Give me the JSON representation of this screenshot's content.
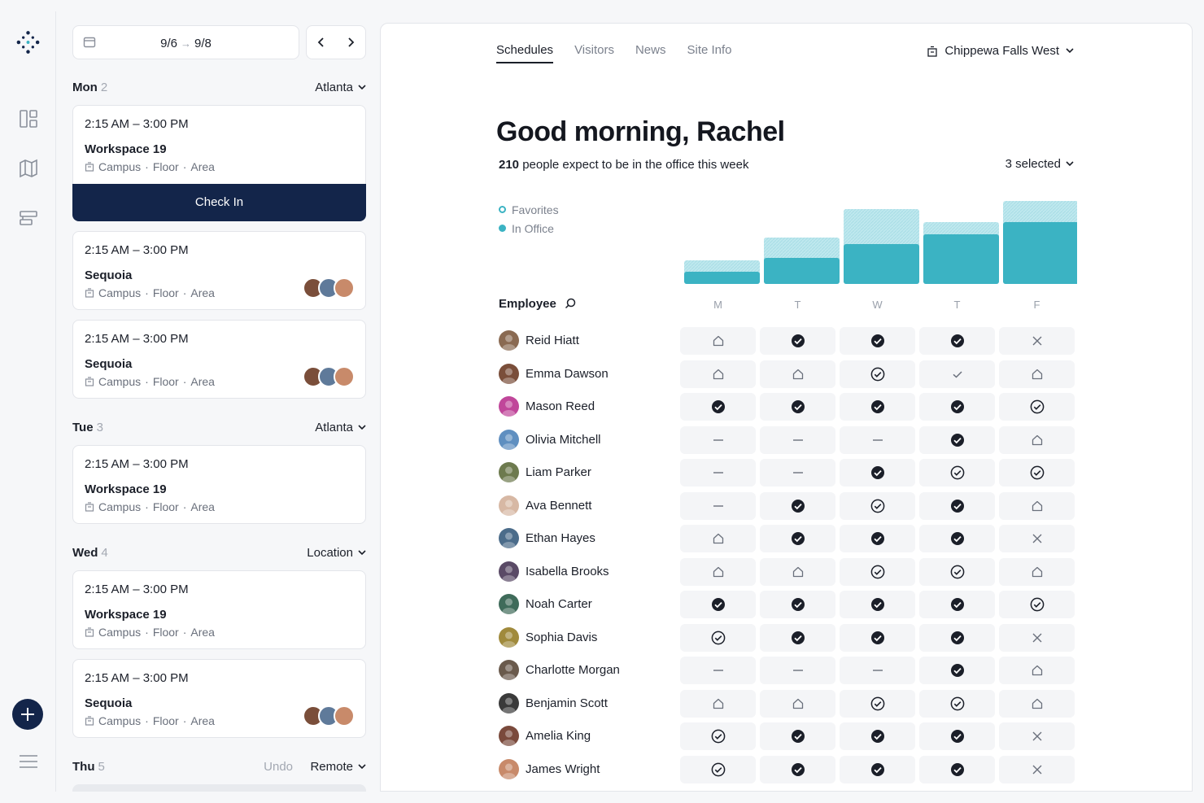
{
  "app": {
    "accent": "#3bb3c3",
    "navy": "#13254a"
  },
  "rail": {
    "icons": [
      "logo-icon",
      "dashboard-icon",
      "map-icon",
      "schedule-icon",
      "add-icon",
      "menu-icon"
    ]
  },
  "schedule": {
    "date_start": "9/6",
    "date_end": "9/8",
    "days": [
      {
        "name": "Mon",
        "count": "2",
        "location": "Atlanta"
      },
      {
        "name": "Tue",
        "count": "3",
        "location": "Atlanta"
      },
      {
        "name": "Wed",
        "count": "4",
        "location": "Location"
      },
      {
        "name": "Thu",
        "count": "5",
        "location": "Remote",
        "undo": "Undo"
      }
    ],
    "meta_campus": "Campus",
    "meta_floor": "Floor",
    "meta_area": "Area",
    "sep": "·",
    "checkin_label": "Check In",
    "cards": [
      {
        "time": "2:15 AM – 3:00 PM",
        "workspace": "Workspace 19"
      },
      {
        "time": "2:15 AM – 3:00 PM",
        "workspace": "Sequoia"
      },
      {
        "time": "2:15 AM – 3:00 PM",
        "workspace": "Sequoia"
      },
      {
        "time": "2:15 AM – 3:00 PM",
        "workspace": "Workspace 19"
      },
      {
        "time": "2:15 AM – 3:00 PM",
        "workspace": "Workspace 19"
      },
      {
        "time": "2:15 AM – 3:00 PM",
        "workspace": "Sequoia"
      }
    ]
  },
  "main": {
    "tabs": [
      {
        "label": "Schedules",
        "active": true
      },
      {
        "label": "Visitors",
        "active": false
      },
      {
        "label": "News",
        "active": false
      },
      {
        "label": "Site Info",
        "active": false
      }
    ],
    "site": "Chippewa Falls West",
    "greeting": "Good morning, Rachel",
    "people_count": "210",
    "people_text": "people expect to be in the office this week",
    "selected": "3 selected",
    "legend_favorites": "Favorites",
    "legend_in_office": "In Office",
    "employee_header": "Employee",
    "days": [
      "M",
      "T",
      "W",
      "T",
      "F"
    ]
  },
  "chart_data": {
    "type": "bar",
    "categories": [
      "M",
      "T",
      "W",
      "T",
      "F"
    ],
    "series": [
      {
        "name": "In Office",
        "values": [
          15,
          32,
          49,
          61,
          76
        ]
      },
      {
        "name": "Favorites",
        "values": [
          29,
          57,
          92,
          76,
          102
        ]
      }
    ],
    "ylim": [
      0,
      110
    ]
  },
  "employees": [
    {
      "name": "Reid Hiatt",
      "color": "#8a6a52",
      "status": [
        "home",
        "check-filled",
        "check-filled",
        "check-filled",
        "x"
      ]
    },
    {
      "name": "Emma Dawson",
      "color": "#7a4e3a",
      "status": [
        "home",
        "home",
        "check-outline",
        "check-light",
        "home"
      ]
    },
    {
      "name": "Mason Reed",
      "color": "#c0469a",
      "status": [
        "check-filled",
        "check-filled",
        "check-filled",
        "check-filled",
        "check-outline"
      ]
    },
    {
      "name": "Olivia Mitchell",
      "color": "#5f8fc0",
      "status": [
        "dash",
        "dash",
        "dash",
        "check-filled",
        "home"
      ]
    },
    {
      "name": "Liam Parker",
      "color": "#6d7a4e",
      "status": [
        "dash",
        "dash",
        "check-filled",
        "check-outline",
        "check-outline"
      ]
    },
    {
      "name": "Ava Bennett",
      "color": "#d7b8a4",
      "status": [
        "dash",
        "check-filled",
        "check-outline",
        "check-filled",
        "home"
      ]
    },
    {
      "name": "Ethan Hayes",
      "color": "#4b6c8a",
      "status": [
        "home",
        "check-filled",
        "check-filled",
        "check-filled",
        "x"
      ]
    },
    {
      "name": "Isabella Brooks",
      "color": "#5a4a66",
      "status": [
        "home",
        "home",
        "check-outline",
        "check-outline",
        "home"
      ]
    },
    {
      "name": "Noah Carter",
      "color": "#3f6b5a",
      "status": [
        "check-filled",
        "check-filled",
        "check-filled",
        "check-filled",
        "check-outline"
      ]
    },
    {
      "name": "Sophia Davis",
      "color": "#a08a3c",
      "status": [
        "check-outline",
        "check-filled",
        "check-filled",
        "check-filled",
        "x"
      ]
    },
    {
      "name": "Charlotte Morgan",
      "color": "#6a5a4c",
      "status": [
        "dash",
        "dash",
        "dash",
        "check-filled",
        "home"
      ]
    },
    {
      "name": "Benjamin Scott",
      "color": "#3a3a3a",
      "status": [
        "home",
        "home",
        "check-outline",
        "check-outline",
        "home"
      ]
    },
    {
      "name": "Amelia King",
      "color": "#7a4a3c",
      "status": [
        "check-outline",
        "check-filled",
        "check-filled",
        "check-filled",
        "x"
      ]
    },
    {
      "name": "James Wright",
      "color": "#c88a6a",
      "status": [
        "check-outline",
        "check-filled",
        "check-filled",
        "check-filled",
        "x"
      ]
    }
  ]
}
